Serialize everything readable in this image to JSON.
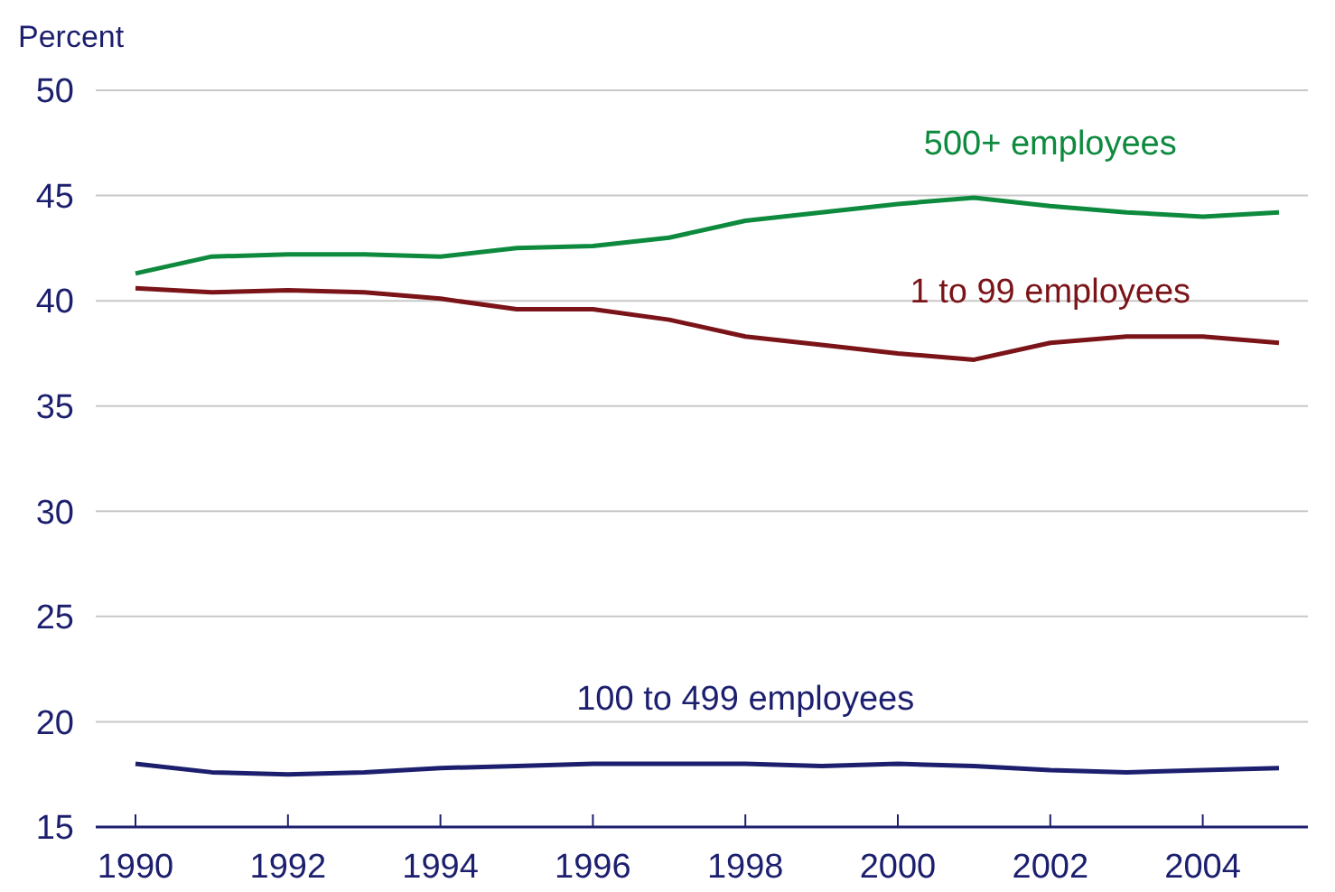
{
  "chart_data": {
    "type": "line",
    "ylabel": "Percent",
    "categories": [
      "1990",
      null,
      "1992",
      null,
      "1994",
      null,
      "1996",
      null,
      "1998",
      null,
      "2000",
      null,
      "2002",
      null,
      "2004",
      null
    ],
    "ylim": [
      15,
      50
    ],
    "yticks": [
      15,
      20,
      25,
      30,
      35,
      40,
      45,
      50
    ],
    "grid": "y",
    "series": [
      {
        "name": "500+ employees",
        "color": "#0e8a3e",
        "values": [
          41.3,
          42.1,
          42.2,
          42.2,
          42.1,
          42.5,
          42.6,
          43.0,
          43.8,
          44.2,
          44.6,
          44.9,
          44.5,
          44.2,
          44.0,
          44.2
        ]
      },
      {
        "name": "1 to 99 employees",
        "color": "#7b1418",
        "values": [
          40.6,
          40.4,
          40.5,
          40.4,
          40.1,
          39.6,
          39.6,
          39.1,
          38.3,
          37.9,
          37.5,
          37.2,
          38.0,
          38.3,
          38.3,
          38.0
        ]
      },
      {
        "name": "100 to 499 employees",
        "color": "#1c1f6e",
        "values": [
          18.0,
          17.6,
          17.5,
          17.6,
          17.8,
          17.9,
          18.0,
          18.0,
          18.0,
          17.9,
          18.0,
          17.9,
          17.7,
          17.6,
          17.7,
          17.8
        ]
      }
    ]
  }
}
